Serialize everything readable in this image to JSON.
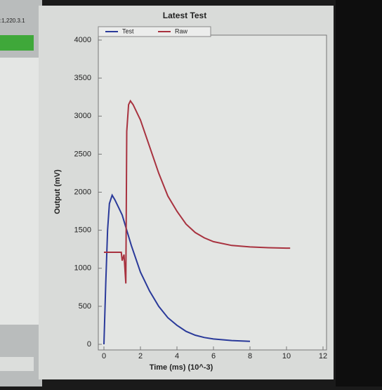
{
  "window": {
    "caption_fragment": ":1,220.3.1"
  },
  "chart_data": {
    "type": "line",
    "title": "Latest Test",
    "x_label": "Time (ms) (10^-3)",
    "y_label": "Output (mV)",
    "xlim": [
      0,
      12
    ],
    "xticks": [
      0,
      2,
      4,
      6,
      8,
      10,
      12
    ],
    "ylim": [
      0,
      4000
    ],
    "yticks": [
      0,
      500,
      1000,
      1500,
      2000,
      2500,
      3000,
      3500,
      4000
    ],
    "legend": "top",
    "series": [
      {
        "name": "Test",
        "color": "#2a3a9a",
        "x": [
          0,
          0.05,
          0.1,
          0.2,
          0.3,
          0.45,
          0.6,
          0.8,
          1,
          1.5,
          2,
          2.5,
          3,
          3.5,
          4,
          4.5,
          5,
          5.5,
          6,
          7,
          8
        ],
        "values": [
          0,
          400,
          800,
          1500,
          1850,
          1960,
          1900,
          1800,
          1700,
          1300,
          950,
          700,
          500,
          350,
          250,
          170,
          120,
          90,
          70,
          50,
          40
        ]
      },
      {
        "name": "Raw",
        "color": "#a8323f",
        "x": [
          0,
          0.5,
          0.95,
          1.0,
          1.1,
          1.2,
          1.25,
          1.35,
          1.45,
          1.6,
          2,
          2.5,
          3,
          3.5,
          4,
          4.5,
          5,
          5.5,
          6,
          7,
          8,
          9,
          10,
          10.2
        ],
        "values": [
          1210,
          1210,
          1210,
          1100,
          1180,
          800,
          2800,
          3150,
          3200,
          3150,
          2950,
          2600,
          2250,
          1950,
          1750,
          1580,
          1470,
          1400,
          1350,
          1300,
          1280,
          1270,
          1265,
          1265
        ]
      }
    ]
  }
}
